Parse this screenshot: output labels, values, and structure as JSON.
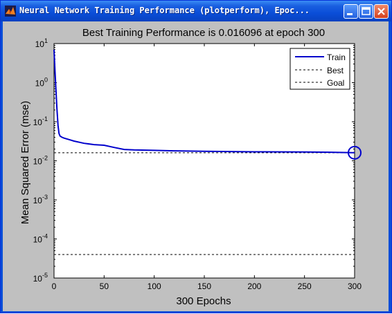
{
  "window": {
    "title": "Neural Network Training Performance (plotperform), Epoc...",
    "controls": [
      "minimize",
      "maximize",
      "close"
    ]
  },
  "colors": {
    "title_bar": "#0a4ed8",
    "figure_bg": "#c0c0c0",
    "train_line": "#0000cc",
    "close_button": "#d5401e"
  },
  "chart_data": {
    "type": "line",
    "title": "Best Training Performance is 0.016096 at epoch 300",
    "xlabel": "300 Epochs",
    "ylabel": "Mean Squared Error  (mse)",
    "x_ticks": [
      "0",
      "50",
      "100",
      "150",
      "200",
      "250",
      "300"
    ],
    "y_ticks": [
      {
        "base": "10",
        "exp": "1"
      },
      {
        "base": "10",
        "exp": "0"
      },
      {
        "base": "10",
        "exp": "-1"
      },
      {
        "base": "10",
        "exp": "-2"
      },
      {
        "base": "10",
        "exp": "-3"
      },
      {
        "base": "10",
        "exp": "-4"
      },
      {
        "base": "10",
        "exp": "-5"
      }
    ],
    "xlim": [
      0,
      300
    ],
    "ylim": [
      1e-05,
      10
    ],
    "y_scale": "log",
    "grid": false,
    "legend_position": "top-right",
    "legend": [
      "Train",
      "Best",
      "Goal"
    ],
    "series": [
      {
        "name": "Train",
        "style": "solid",
        "x": [
          0,
          1,
          2,
          3,
          4,
          5,
          6,
          8,
          10,
          15,
          20,
          30,
          40,
          50,
          60,
          70,
          80,
          100,
          120,
          150,
          200,
          250,
          275,
          300
        ],
        "y": [
          7,
          2,
          0.6,
          0.2,
          0.08,
          0.05,
          0.043,
          0.04,
          0.038,
          0.035,
          0.032,
          0.028,
          0.026,
          0.025,
          0.022,
          0.0195,
          0.019,
          0.0185,
          0.018,
          0.0175,
          0.017,
          0.0168,
          0.0166,
          0.016096
        ]
      },
      {
        "name": "Best",
        "style": "dashed",
        "y_value": 0.016096
      },
      {
        "name": "Goal",
        "style": "dashed",
        "y_value": 4e-05
      }
    ],
    "best_epoch": 300,
    "best_value": 0.016096
  }
}
